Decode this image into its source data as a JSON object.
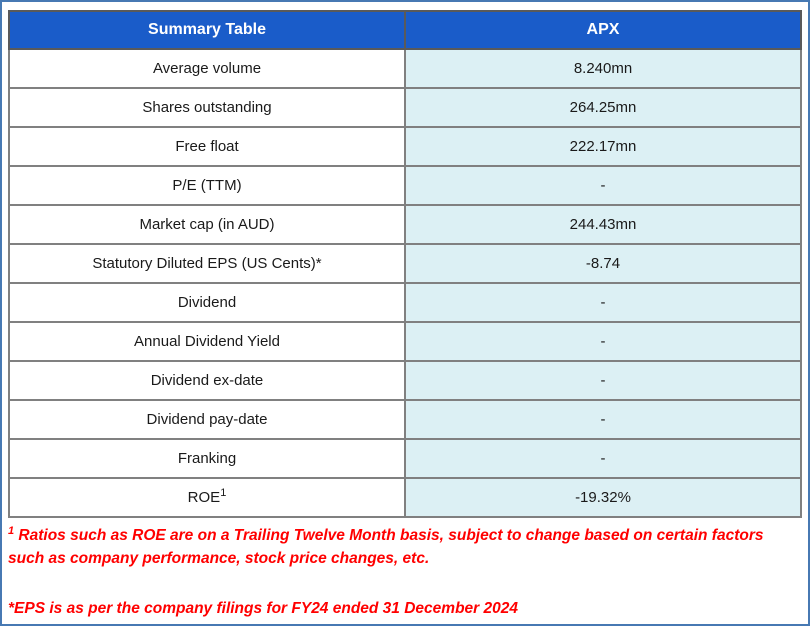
{
  "table": {
    "header": {
      "label": "Summary Table",
      "value": "APX"
    },
    "rows": [
      {
        "label": "Average volume",
        "value": "8.240mn"
      },
      {
        "label": "Shares outstanding",
        "value": "264.25mn"
      },
      {
        "label": "Free float",
        "value": "222.17mn"
      },
      {
        "label": "P/E (TTM)",
        "value": "-"
      },
      {
        "label": "Market cap (in AUD)",
        "value": "244.43mn"
      },
      {
        "label": "Statutory Diluted EPS (US Cents)*",
        "value": "-8.74"
      },
      {
        "label": "Dividend",
        "value": "-"
      },
      {
        "label": "Annual Dividend Yield",
        "value": "-"
      },
      {
        "label": "Dividend ex-date",
        "value": "-"
      },
      {
        "label": "Dividend pay-date",
        "value": "-"
      },
      {
        "label": "Franking",
        "value": "-"
      },
      {
        "label": "ROE",
        "label_sup": "1",
        "value": "-19.32%"
      }
    ]
  },
  "footnotes": {
    "note1_sup": "1",
    "note1_text": " Ratios such as ROE are on a Trailing Twelve Month basis, subject to change based on certain factors such as company performance, stock price changes, etc.",
    "note2_text": "*EPS is as per the company filings for FY24 ended 31 December 2024"
  },
  "colors": {
    "header_bg": "#1a5cc9",
    "header_text": "#ffffff",
    "value_cell_bg": "#dcf0f4",
    "label_cell_bg": "#ffffff",
    "grid_line": "#808080",
    "table_border": "#5a5a5a",
    "frame_border": "#4779b3",
    "footnote_red": "#ff0000",
    "body_text": "#1a1a1a"
  }
}
